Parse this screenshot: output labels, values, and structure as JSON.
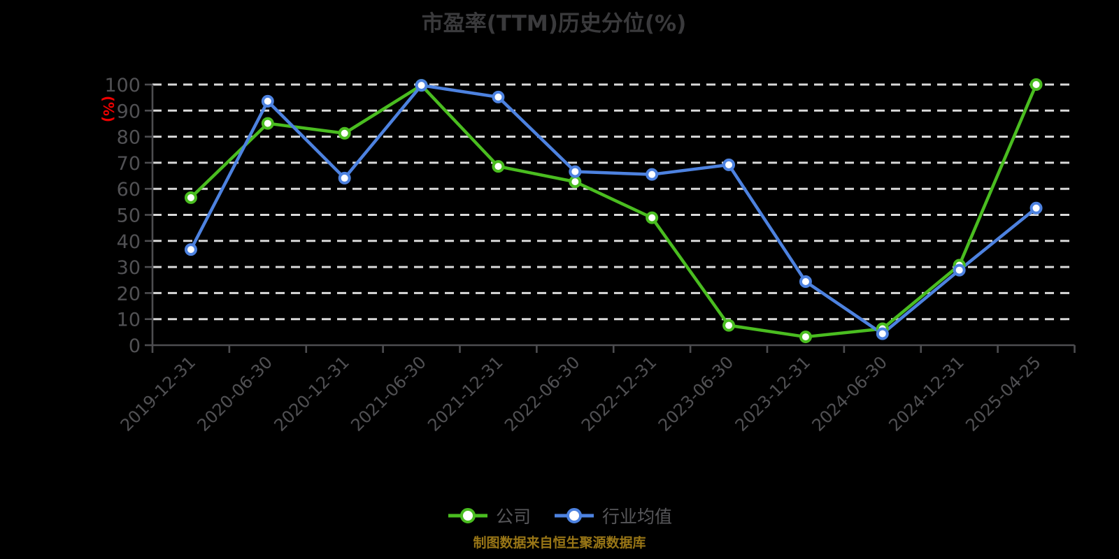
{
  "title": "市盈率(TTM)历史分位(%)",
  "footer": "制图数据来自恒生聚源数据库",
  "chart_data": {
    "type": "line",
    "title": "市盈率(TTM)历史分位(%)",
    "ylabel": "(%)",
    "xlabel": "",
    "ylim": [
      0,
      100
    ],
    "ytick_step": 10,
    "grid": true,
    "grid_style": "dashed",
    "legend_position": "bottom",
    "categories": [
      "2019-12-31",
      "2020-06-30",
      "2020-12-31",
      "2021-06-30",
      "2021-12-31",
      "2022-06-30",
      "2022-12-31",
      "2023-06-30",
      "2023-12-31",
      "2024-06-30",
      "2024-12-31",
      "2025-04-25"
    ],
    "series": [
      {
        "key": "company",
        "name": "公司",
        "color": "#4abd20",
        "marker": "circle-open",
        "values": [
          56.6,
          85.1,
          81.3,
          99.7,
          68.6,
          62.7,
          48.9,
          7.6,
          3.2,
          6.3,
          30.7,
          100
        ]
      },
      {
        "key": "industry",
        "name": "行业均值",
        "color": "#4d82e0",
        "marker": "circle-open",
        "values": [
          36.7,
          93.6,
          64.1,
          99.7,
          95.2,
          66.6,
          65.5,
          69.2,
          24.4,
          4.4,
          28.8,
          52.6
        ]
      }
    ],
    "colors": {
      "background": "#000000",
      "grid_color": "#d9d9d9",
      "axis_color": "#4d4d50",
      "tick_label_color": "#515154",
      "title_color": "#3a3a3c",
      "ylabel_color": "#ee0000",
      "legend_text_color": "#57575a",
      "footer_color": "#997616",
      "marker_fill": "#ffffff"
    }
  }
}
